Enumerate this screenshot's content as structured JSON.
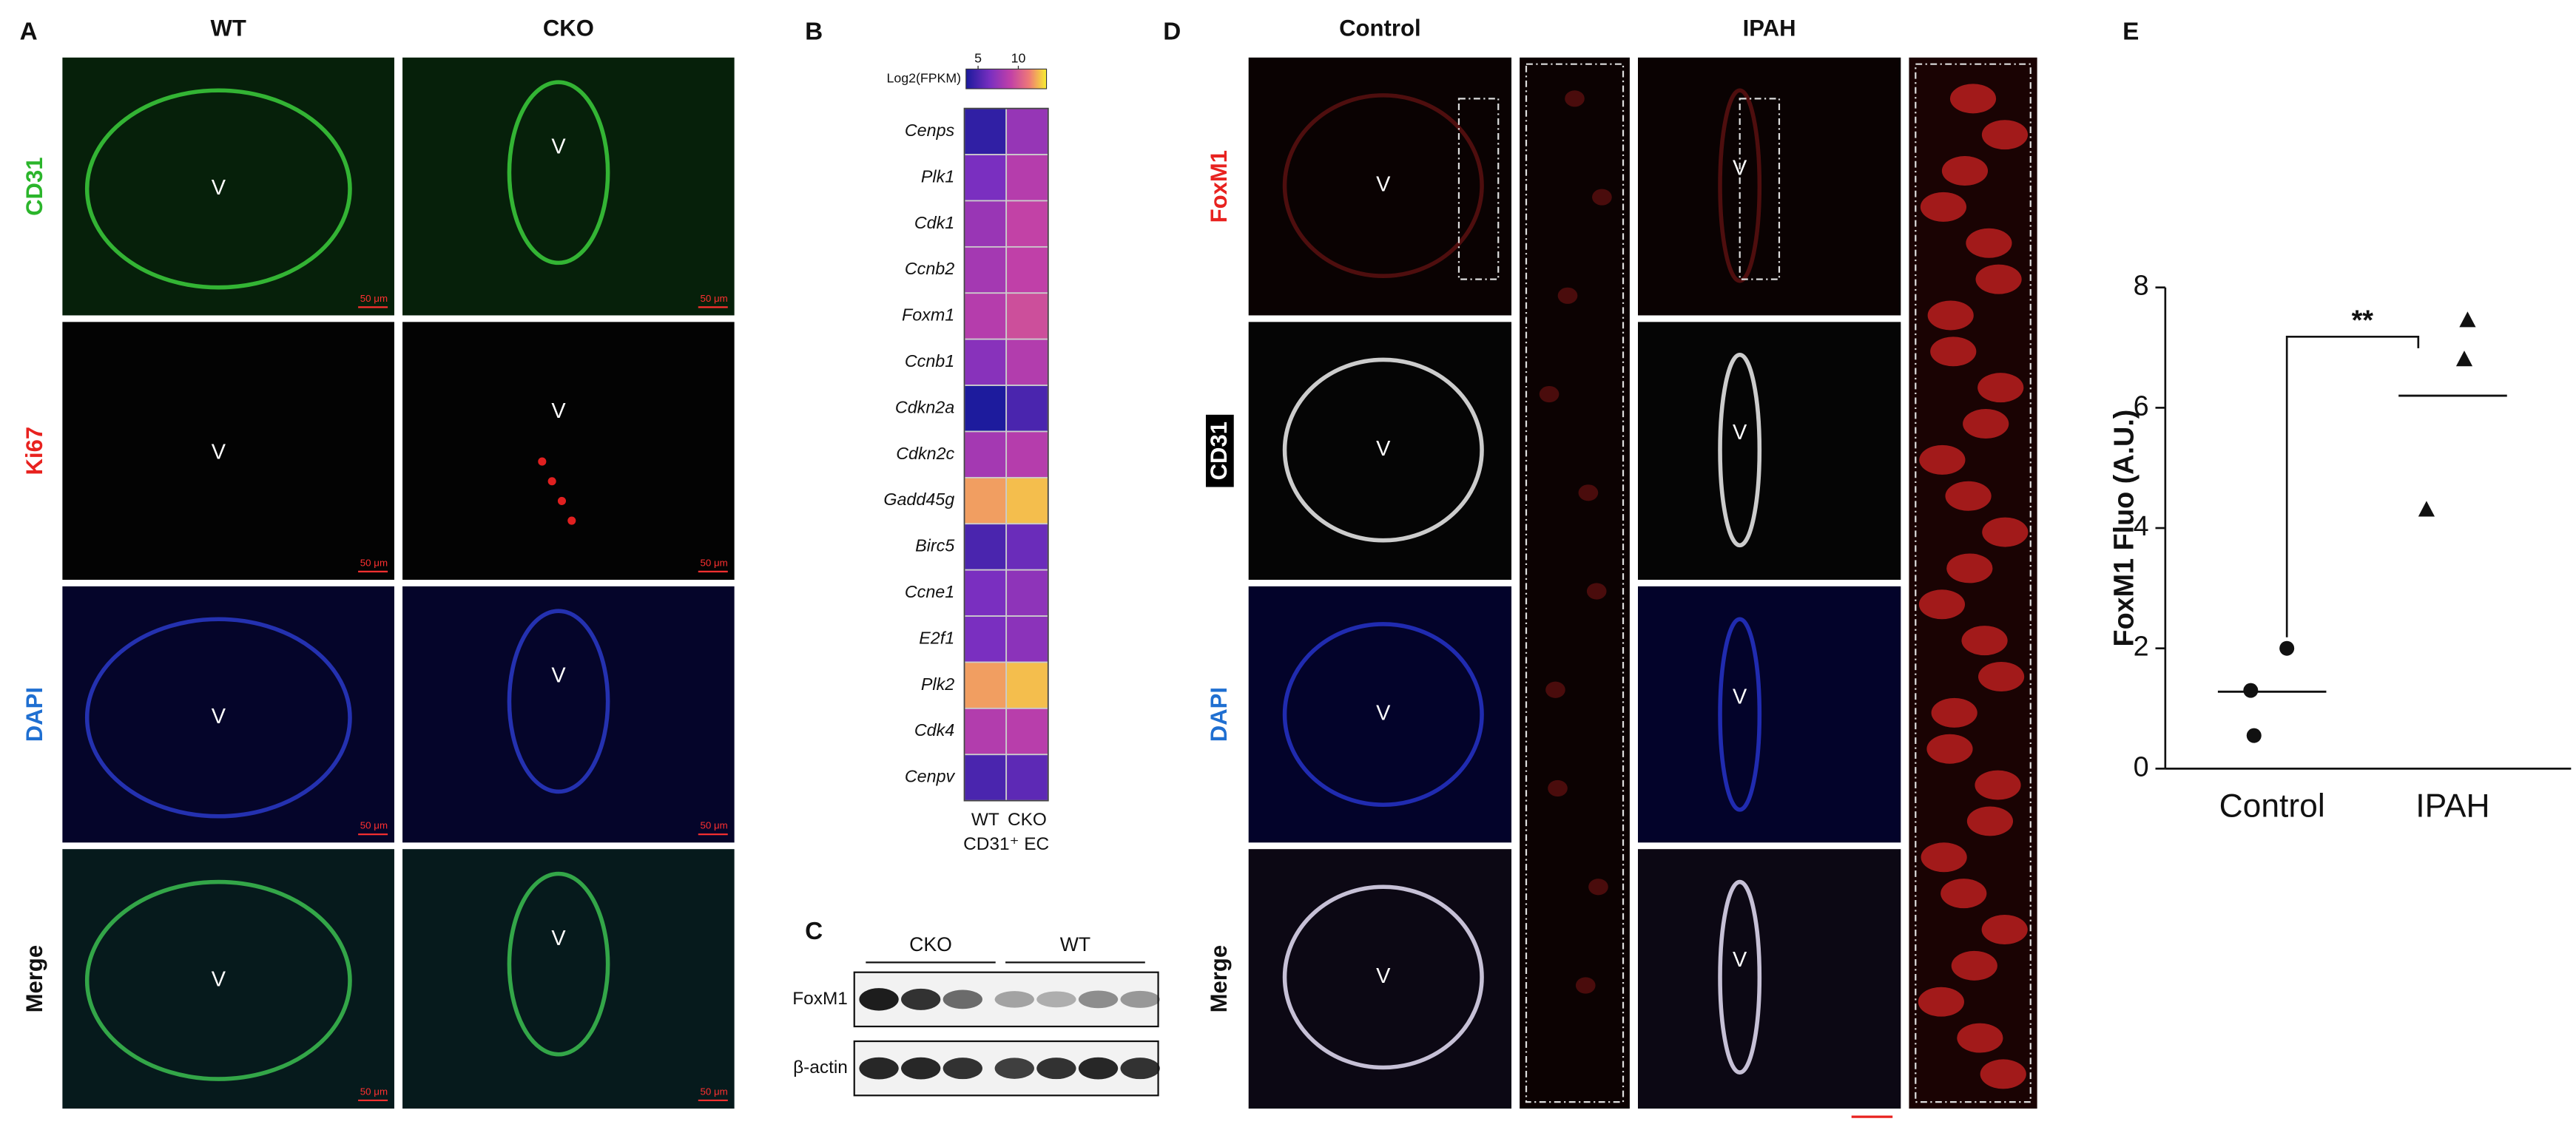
{
  "panel_labels": [
    "A",
    "B",
    "C",
    "D",
    "E"
  ],
  "panel_a": {
    "columns": [
      "WT",
      "CKO"
    ],
    "rows": [
      "CD31",
      "Ki67",
      "DAPI",
      "Merge"
    ],
    "vessel_label": "V",
    "scale_bar": "50 μm"
  },
  "panel_b": {
    "type": "heatmap",
    "colorbar_title": "Log2(FPKM)",
    "zlim": [
      3.5,
      13.5
    ],
    "zticks": [
      5,
      10
    ],
    "genes": [
      "Cenps",
      "Plk1",
      "Cdk1",
      "Ccnb2",
      "Foxm1",
      "Ccnb1",
      "Cdkn2a",
      "Cdkn2c",
      "Gadd45g",
      "Birc5",
      "Ccne1",
      "E2f1",
      "Plk2",
      "Cdk4",
      "Cenpv"
    ],
    "columns": [
      "WT",
      "CKO"
    ],
    "values": [
      [
        4.2,
        7.5
      ],
      [
        6.5,
        8.6
      ],
      [
        7.6,
        9.1
      ],
      [
        8.0,
        9.0
      ],
      [
        8.6,
        9.6
      ],
      [
        7.0,
        8.5
      ],
      [
        3.6,
        5.0
      ],
      [
        8.0,
        8.6
      ],
      [
        12.0,
        12.6
      ],
      [
        5.0,
        6.0
      ],
      [
        6.5,
        7.2
      ],
      [
        6.5,
        7.1
      ],
      [
        12.0,
        12.6
      ],
      [
        8.5,
        8.7
      ],
      [
        5.0,
        5.6
      ]
    ],
    "xlabel": "CD31⁺ EC"
  },
  "panel_c": {
    "groups": [
      "CKO",
      "WT"
    ],
    "rows": [
      "FoxM1",
      "β-actin"
    ]
  },
  "panel_d": {
    "columns": [
      "Control",
      "IPAH"
    ],
    "rows": [
      "FoxM1",
      "CD31",
      "DAPI",
      "Merge"
    ],
    "vessel_label": "V"
  },
  "chart_data": {
    "type": "scatter",
    "categories": [
      "Control",
      "IPAH"
    ],
    "values": [
      [
        2.0,
        1.3,
        0.55
      ],
      [
        7.45,
        6.8,
        4.3
      ]
    ],
    "means": [
      1.28,
      6.2
    ],
    "ylabel": "FoxM1 Fluo (A.U.)",
    "ylim": [
      0,
      8
    ],
    "yticks": [
      0,
      2,
      4,
      6,
      8
    ],
    "annotation": "**"
  }
}
